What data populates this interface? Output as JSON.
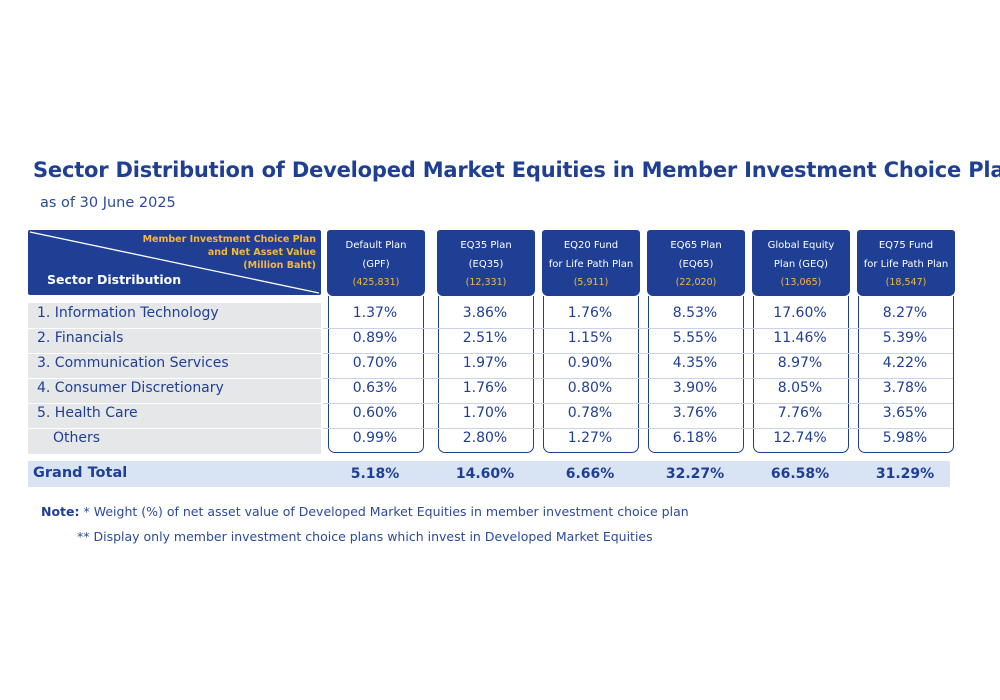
{
  "title": "Sector Distribution of Developed Market Equities in Member Investment Choice Plan",
  "subtitle": "as of 30 June 2025",
  "corner": {
    "column_header_lines": [
      "Member Investment Choice Plan",
      "and Net Asset Value",
      "(Million Baht)"
    ],
    "row_header": "Sector Distribution"
  },
  "columns": [
    {
      "line1": "Default Plan",
      "line2": "(GPF)",
      "value": "(425,831)"
    },
    {
      "line1": "EQ35 Plan",
      "line2": "(EQ35)",
      "value": "(12,331)"
    },
    {
      "line1": "EQ20 Fund",
      "line2": "for Life Path Plan",
      "value": "(5,911)"
    },
    {
      "line1": "EQ65 Plan",
      "line2": "(EQ65)",
      "value": "(22,020)"
    },
    {
      "line1": "Global Equity",
      "line2": "Plan (GEQ)",
      "value": "(13,065)"
    },
    {
      "line1": "EQ75 Fund",
      "line2": "for Life Path Plan",
      "value": "(18,547)"
    }
  ],
  "rows": [
    {
      "sector": "1. Information Technology",
      "values": [
        "1.37%",
        "3.86%",
        "1.76%",
        "8.53%",
        "17.60%",
        "8.27%"
      ]
    },
    {
      "sector": "2. Financials",
      "values": [
        "0.89%",
        "2.51%",
        "1.15%",
        "5.55%",
        "11.46%",
        "5.39%"
      ]
    },
    {
      "sector": "3. Communication Services",
      "values": [
        "0.70%",
        "1.97%",
        "0.90%",
        "4.35%",
        "8.97%",
        "4.22%"
      ]
    },
    {
      "sector": "4. Consumer Discretionary",
      "values": [
        "0.63%",
        "1.76%",
        "0.80%",
        "3.90%",
        "8.05%",
        "3.78%"
      ]
    },
    {
      "sector": "5. Health Care",
      "values": [
        "0.60%",
        "1.70%",
        "0.78%",
        "3.76%",
        "7.76%",
        "3.65%"
      ]
    },
    {
      "sector": "Others",
      "values": [
        "0.99%",
        "2.80%",
        "1.27%",
        "6.18%",
        "12.74%",
        "5.98%"
      ]
    }
  ],
  "grand_total": {
    "label": "Grand Total",
    "values": [
      "5.18%",
      "14.60%",
      "6.66%",
      "32.27%",
      "66.58%",
      "31.29%"
    ]
  },
  "notes": {
    "label": "Note:",
    "line1": "* Weight (%) of net asset value of Developed Market Equities in member investment choice plan",
    "line2": "** Display only member investment choice plans which invest in Developed Market Equities"
  },
  "colors": {
    "primary": "#1f3f95",
    "accent": "#f5b73d",
    "total_bg": "#d8e4f3",
    "sector_bg": "#e6e7e8"
  }
}
